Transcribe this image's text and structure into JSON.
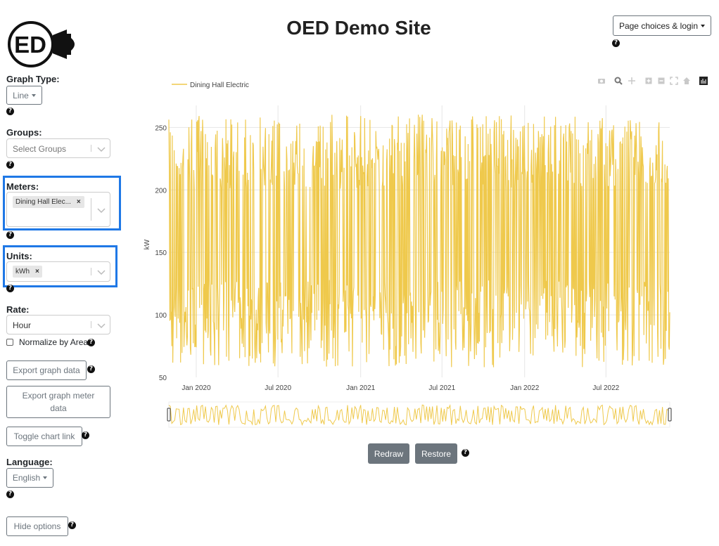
{
  "header": {
    "title": "OED Demo Site",
    "page_choices_label": "Page choices & login"
  },
  "logo": {
    "text": "ED"
  },
  "help_glyph": "?",
  "sidebar": {
    "graph_type": {
      "label": "Graph Type:",
      "value": "Line"
    },
    "groups": {
      "label": "Groups:",
      "placeholder": "Select Groups"
    },
    "meters": {
      "label": "Meters:",
      "selected": "Dining Hall Elec...",
      "remove": "×"
    },
    "units": {
      "label": "Units:",
      "selected": "kWh",
      "remove": "×"
    },
    "rate": {
      "label": "Rate:",
      "value": "Hour"
    },
    "normalize": {
      "label": "Normalize by Area",
      "checked": false
    },
    "export_graph_data": "Export graph data",
    "export_graph_meter_data": "Export graph meter data",
    "toggle_chart_link": "Toggle chart link",
    "language": {
      "label": "Language:",
      "value": "English"
    },
    "hide_options": "Hide options"
  },
  "toolbar_icons": [
    "camera-icon",
    "zoom-icon",
    "pan-icon",
    "zoom-in-icon",
    "zoom-out-icon",
    "autoscale-icon",
    "reset-home-icon",
    "plotly-logo-icon"
  ],
  "buttons": {
    "redraw": "Redraw",
    "restore": "Restore"
  },
  "colors": {
    "series": "#efc94c",
    "highlight": "#1f78e6",
    "button_gray": "#6c757d"
  },
  "chart_data": {
    "type": "line",
    "ylabel": "kW",
    "xlabel": "",
    "y_ticks": [
      50,
      100,
      150,
      200,
      250
    ],
    "ylim": [
      50,
      262
    ],
    "x_range": [
      "2019-11-01",
      "2022-11-20"
    ],
    "x_ticks": [
      "Jan 2020",
      "Jul 2020",
      "Jan 2021",
      "Jul 2021",
      "Jan 2022",
      "Jul 2022"
    ],
    "grid": true,
    "legend": {
      "position": "top-left"
    },
    "series": [
      {
        "name": "Dining Hall Electric",
        "min": 58,
        "max": 261,
        "points_per_month": 28
      }
    ],
    "range_slider": true
  }
}
